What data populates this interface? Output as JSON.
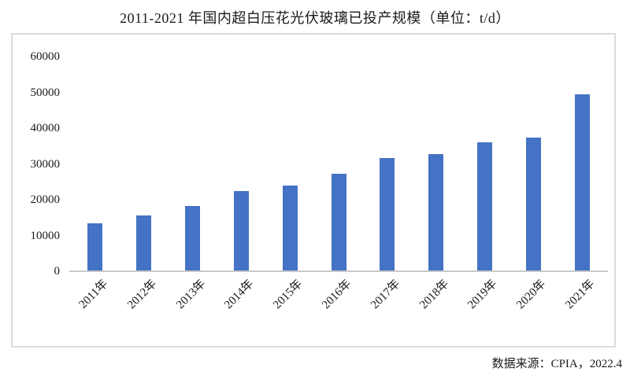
{
  "title": "2011-2021 年国内超白压花光伏玻璃已投产规模（单位：t/d）",
  "source_note": "数据来源：CPIA，2022.4",
  "colors": {
    "bar": "#4472C4",
    "frame_border": "#dcdcdc",
    "axis_line": "#c9c9c9",
    "text": "#1a1a1a"
  },
  "chart_data": {
    "type": "bar",
    "title": "2011-2021 年国内超白压花光伏玻璃已投产规模（单位：t/d）",
    "unit": "t/d",
    "categories": [
      "2011年",
      "2012年",
      "2013年",
      "2014年",
      "2015年",
      "2016年",
      "2017年",
      "2018年",
      "2019年",
      "2020年",
      "2021年"
    ],
    "values": [
      13400,
      15600,
      18200,
      22500,
      23900,
      27300,
      31700,
      32700,
      36100,
      37300,
      49400
    ],
    "ylim": [
      0,
      60000
    ],
    "yticks": [
      0,
      10000,
      20000,
      30000,
      40000,
      50000,
      60000
    ],
    "grid": false,
    "legend": false,
    "bar_color": "#4472C4",
    "source": "数据来源：CPIA，2022.4"
  }
}
